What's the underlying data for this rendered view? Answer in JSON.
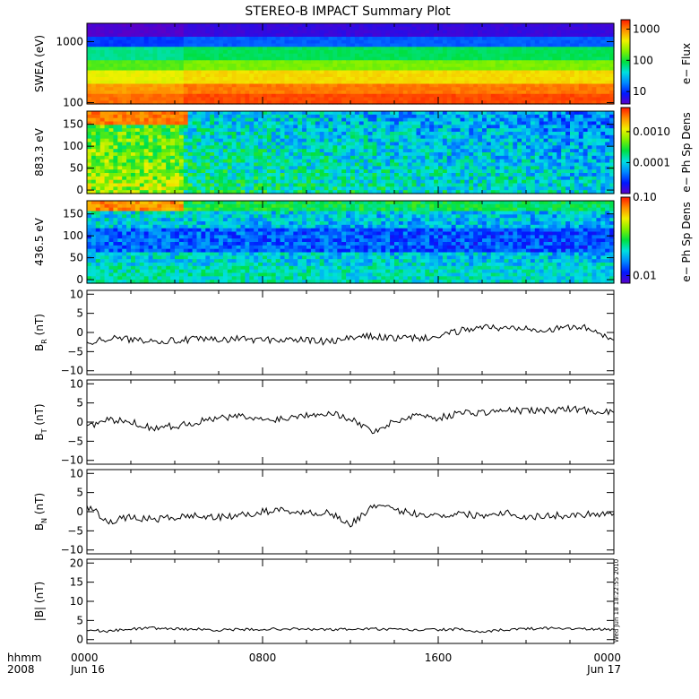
{
  "title": "STEREO-B IMPACT Summary Plot",
  "time_axis": {
    "corner_label_1": "hhmm",
    "corner_label_2": "2008",
    "ticks": [
      {
        "hours": 0,
        "label": "0000",
        "date": "Jun 16"
      },
      {
        "hours": 8,
        "label": "0800",
        "date": ""
      },
      {
        "hours": 16,
        "label": "1600",
        "date": ""
      },
      {
        "hours": 24,
        "label": "0000",
        "date": "Jun 17"
      }
    ]
  },
  "timestamp": "Wed Jun 18 18:22:55 2010",
  "colors": {
    "line": "#000000",
    "frame": "#000000",
    "background": "#ffffff"
  },
  "chart_data": [
    {
      "type": "heatmap",
      "id": "swea",
      "ylabel": "SWEA (eV)",
      "y_scale": "log",
      "ylim": [
        95,
        2000
      ],
      "yticks": [
        {
          "v": 100,
          "label": "100"
        },
        {
          "v": 1000,
          "label": "1000"
        }
      ],
      "colorbar": {
        "label": "e− Flux",
        "scale": "log",
        "range": [
          4,
          2000
        ],
        "ticks": [
          {
            "v": 10,
            "label": "10"
          },
          {
            "v": 100,
            "label": "100"
          },
          {
            "v": 1000,
            "label": "1000"
          }
        ]
      },
      "description_levels": {
        "energy_eV": [
          100,
          200,
          400,
          800,
          1600
        ],
        "flux_approx": [
          1500,
          700,
          120,
          20,
          6
        ]
      }
    },
    {
      "type": "heatmap",
      "id": "pad883",
      "ylabel": "883.3 eV",
      "y_scale": "linear",
      "ylim": [
        -8,
        180
      ],
      "yticks": [
        {
          "v": 0,
          "label": "0"
        },
        {
          "v": 50,
          "label": "50"
        },
        {
          "v": 100,
          "label": "100"
        },
        {
          "v": 150,
          "label": "150"
        }
      ],
      "colorbar": {
        "label": "e− Ph Sp Dens",
        "scale": "log",
        "range": [
          1e-05,
          0.006
        ],
        "ticks": [
          {
            "v": 0.0001,
            "label": "0.0001"
          },
          {
            "v": 0.001,
            "label": "0.0010"
          }
        ]
      }
    },
    {
      "type": "heatmap",
      "id": "pad436",
      "ylabel": "436.5 eV",
      "y_scale": "linear",
      "ylim": [
        -8,
        180
      ],
      "yticks": [
        {
          "v": 0,
          "label": "0"
        },
        {
          "v": 50,
          "label": "50"
        },
        {
          "v": 100,
          "label": "100"
        },
        {
          "v": 150,
          "label": "150"
        }
      ],
      "colorbar": {
        "label": "e− Ph Sp Dens",
        "scale": "log",
        "range": [
          0.008,
          0.1
        ],
        "ticks": [
          {
            "v": 0.01,
            "label": "0.01"
          },
          {
            "v": 0.1,
            "label": "0.10"
          }
        ]
      }
    },
    {
      "type": "line",
      "id": "br",
      "ylabel_main": "B",
      "ylabel_sub": "R",
      "ylabel_unit": " (nT)",
      "ylim": [
        -11,
        11
      ],
      "yticks": [
        {
          "v": -10,
          "label": "−10"
        },
        {
          "v": -5,
          "label": "−5"
        },
        {
          "v": 0,
          "label": "0"
        },
        {
          "v": 5,
          "label": "5"
        },
        {
          "v": 10,
          "label": "10"
        }
      ],
      "x_hours": [
        0,
        1,
        2,
        3,
        4,
        5,
        6,
        7,
        8,
        9,
        10,
        11,
        12,
        13,
        14,
        15,
        16,
        17,
        18,
        19,
        20,
        21,
        22,
        23,
        24
      ],
      "y": [
        -2.5,
        -1.5,
        -1.8,
        -2.0,
        -2.2,
        -1.8,
        -2.0,
        -1.6,
        -2.0,
        -1.8,
        -2.0,
        -2.5,
        -1.5,
        -1.0,
        -1.5,
        -1.5,
        -1.2,
        0.5,
        1.5,
        1.0,
        1.5,
        0.5,
        1.5,
        1.0,
        -2.0
      ]
    },
    {
      "type": "line",
      "id": "bt",
      "ylabel_main": "B",
      "ylabel_sub": "T",
      "ylabel_unit": " (nT)",
      "ylim": [
        -11,
        11
      ],
      "yticks": [
        {
          "v": -10,
          "label": "−10"
        },
        {
          "v": -5,
          "label": "−5"
        },
        {
          "v": 0,
          "label": "0"
        },
        {
          "v": 5,
          "label": "5"
        },
        {
          "v": 10,
          "label": "10"
        }
      ],
      "x_hours": [
        0,
        1,
        2,
        3,
        4,
        5,
        6,
        7,
        8,
        9,
        10,
        11,
        12,
        13,
        14,
        15,
        16,
        17,
        18,
        19,
        20,
        21,
        22,
        23,
        24
      ],
      "y": [
        -1.0,
        0.5,
        0.0,
        -1.5,
        -1.0,
        0.0,
        1.0,
        1.5,
        0.5,
        1.0,
        2.0,
        2.5,
        1.0,
        -2.5,
        0.0,
        2.0,
        1.0,
        2.5,
        2.5,
        3.0,
        3.0,
        3.0,
        3.5,
        3.0,
        2.5
      ]
    },
    {
      "type": "line",
      "id": "bn",
      "ylabel_main": "B",
      "ylabel_sub": "N",
      "ylabel_unit": " (nT)",
      "ylim": [
        -11,
        11
      ],
      "yticks": [
        {
          "v": -10,
          "label": "−10"
        },
        {
          "v": -5,
          "label": "−5"
        },
        {
          "v": 0,
          "label": "0"
        },
        {
          "v": 5,
          "label": "5"
        },
        {
          "v": 10,
          "label": "10"
        }
      ],
      "x_hours": [
        0,
        1,
        2,
        3,
        4,
        5,
        6,
        7,
        8,
        9,
        10,
        11,
        12,
        13,
        14,
        15,
        16,
        17,
        18,
        19,
        20,
        21,
        22,
        23,
        24
      ],
      "y": [
        1.5,
        -2.5,
        -1.5,
        -2.0,
        -1.5,
        -1.0,
        -1.5,
        -1.0,
        0.0,
        0.5,
        -0.5,
        0.0,
        -3.5,
        1.5,
        0.5,
        -0.5,
        -1.0,
        -0.5,
        -1.0,
        0.0,
        -1.5,
        -1.0,
        -1.0,
        -0.5,
        -0.5
      ]
    },
    {
      "type": "line",
      "id": "bmag",
      "ylabel_main": "|B| (nT)",
      "ylabel_sub": "",
      "ylabel_unit": "",
      "ylim": [
        -1,
        21
      ],
      "yticks": [
        {
          "v": 0,
          "label": "0"
        },
        {
          "v": 5,
          "label": "5"
        },
        {
          "v": 10,
          "label": "10"
        },
        {
          "v": 15,
          "label": "15"
        },
        {
          "v": 20,
          "label": "20"
        }
      ],
      "x_hours": [
        0,
        1,
        2,
        3,
        4,
        5,
        6,
        7,
        8,
        9,
        10,
        11,
        12,
        13,
        14,
        15,
        16,
        17,
        18,
        19,
        20,
        21,
        22,
        23,
        24
      ],
      "y": [
        2.5,
        2.2,
        2.8,
        3.0,
        2.8,
        2.7,
        2.5,
        2.6,
        2.7,
        2.8,
        2.7,
        2.6,
        2.7,
        2.8,
        2.6,
        2.5,
        2.6,
        2.7,
        1.8,
        2.6,
        2.8,
        3.0,
        2.9,
        2.7,
        2.6
      ]
    }
  ]
}
